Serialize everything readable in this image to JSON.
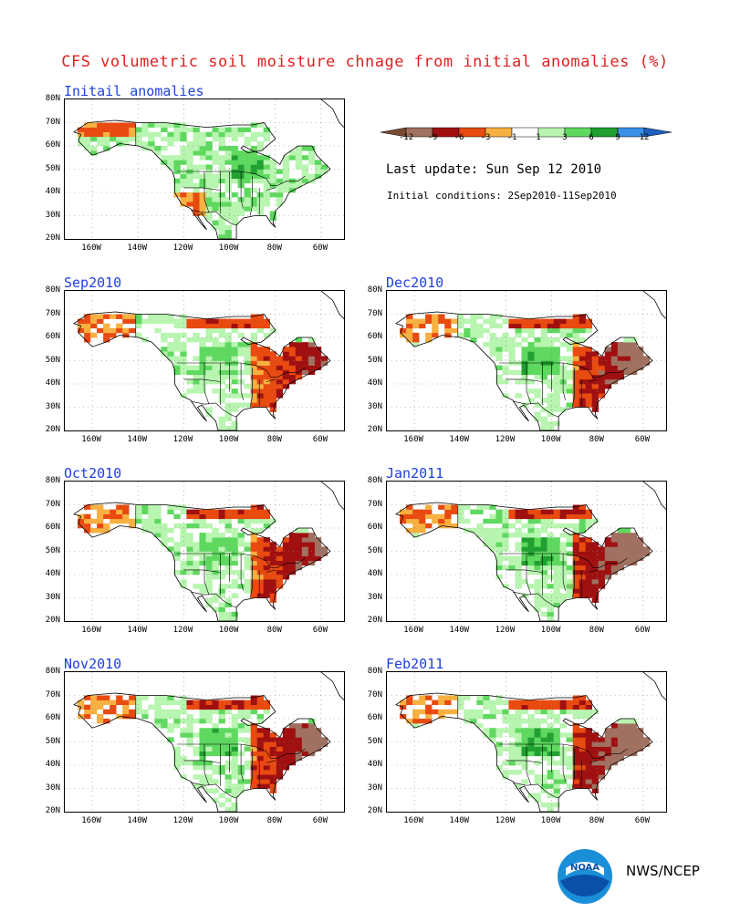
{
  "title": "CFS volumetric soil moisture chnage from initial anomalies (%)",
  "last_update": "Last update: Sun Sep 12 2010",
  "initial_conditions": "Initial conditions: 2Sep2010-11Sep2010",
  "credit": "NWS/NCEP",
  "logo_text": "NOAA",
  "legend": {
    "ticks": [
      "-12",
      "-9",
      "-6",
      "-3",
      "-1",
      "1",
      "3",
      "6",
      "9",
      "12"
    ],
    "colors": [
      "#7a4a32",
      "#a07060",
      "#a01010",
      "#e84a10",
      "#f8b040",
      "#ffffff",
      "#b8f5b0",
      "#5fd860",
      "#20a030",
      "#3a90e8",
      "#2060c0"
    ]
  },
  "lat_labels": [
    "80N",
    "70N",
    "60N",
    "50N",
    "40N",
    "30N",
    "20N"
  ],
  "lon_labels": [
    "160W",
    "140W",
    "120W",
    "100W",
    "80W",
    "60W"
  ],
  "panels": [
    {
      "label": "Initail anomalies",
      "key": "init"
    },
    {
      "label": "Sep2010",
      "key": "sep"
    },
    {
      "label": "Dec2010",
      "key": "dec"
    },
    {
      "label": "Oct2010",
      "key": "oct"
    },
    {
      "label": "Jan2011",
      "key": "jan"
    },
    {
      "label": "Nov2010",
      "key": "nov"
    },
    {
      "label": "Feb2011",
      "key": "feb"
    }
  ]
}
